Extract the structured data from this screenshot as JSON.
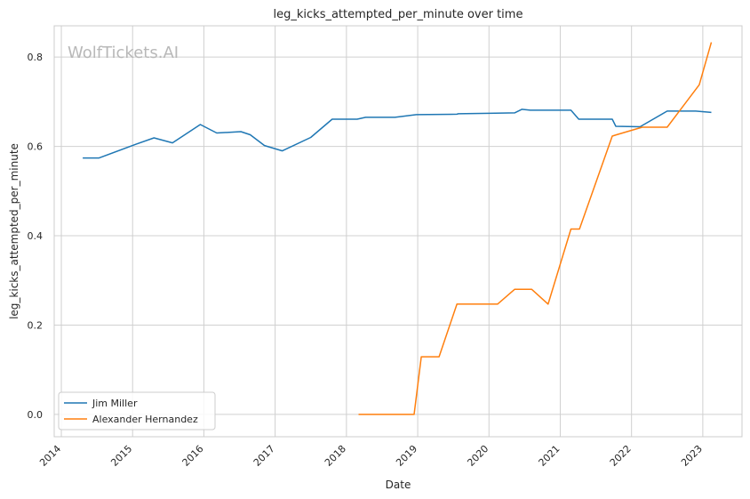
{
  "chart_data": {
    "type": "line",
    "title": "leg_kicks_attempted_per_minute over time",
    "xlabel": "Date",
    "ylabel": "leg_kicks_attempted_per_minute",
    "watermark": "WolfTickets.AI",
    "xlim": [
      2013.9,
      2023.55
    ],
    "ylim": [
      -0.05,
      0.87
    ],
    "xticks": [
      2014,
      2015,
      2016,
      2017,
      2018,
      2019,
      2020,
      2021,
      2022,
      2023
    ],
    "xtick_labels": [
      "2014",
      "2015",
      "2016",
      "2017",
      "2018",
      "2019",
      "2020",
      "2021",
      "2022",
      "2023"
    ],
    "yticks": [
      0.0,
      0.2,
      0.4,
      0.6,
      0.8
    ],
    "ytick_labels": [
      "0.0",
      "0.2",
      "0.4",
      "0.6",
      "0.8"
    ],
    "grid": true,
    "legend_position": "lower-left",
    "series": [
      {
        "name": "Jim Miller",
        "color": "#1f77b4",
        "x": [
          2014.3,
          2014.53,
          2015.05,
          2015.3,
          2015.56,
          2015.95,
          2016.18,
          2016.52,
          2016.65,
          2016.85,
          2017.1,
          2017.5,
          2017.8,
          2018.15,
          2018.27,
          2018.68,
          2018.98,
          2019.55,
          2019.57,
          2020.0,
          2020.36,
          2020.46,
          2020.58,
          2021.15,
          2021.26,
          2021.73,
          2021.78,
          2022.12,
          2022.5,
          2022.9,
          2023.12
        ],
        "y": [
          0.574,
          0.574,
          0.605,
          0.619,
          0.608,
          0.649,
          0.63,
          0.633,
          0.626,
          0.602,
          0.59,
          0.62,
          0.661,
          0.661,
          0.665,
          0.665,
          0.671,
          0.672,
          0.673,
          0.674,
          0.675,
          0.683,
          0.681,
          0.681,
          0.661,
          0.661,
          0.645,
          0.644,
          0.679,
          0.679,
          0.676
        ]
      },
      {
        "name": "Alexander Hernandez",
        "color": "#ff7f0e",
        "x": [
          2018.17,
          2018.95,
          2019.05,
          2019.3,
          2019.55,
          2020.12,
          2020.36,
          2020.6,
          2020.83,
          2021.15,
          2021.27,
          2021.73,
          2021.79,
          2022.15,
          2022.5,
          2022.95,
          2023.12
        ],
        "y": [
          0.0,
          0.0,
          0.129,
          0.129,
          0.247,
          0.247,
          0.28,
          0.28,
          0.247,
          0.415,
          0.415,
          0.623,
          0.626,
          0.643,
          0.643,
          0.738,
          0.833
        ]
      }
    ]
  }
}
